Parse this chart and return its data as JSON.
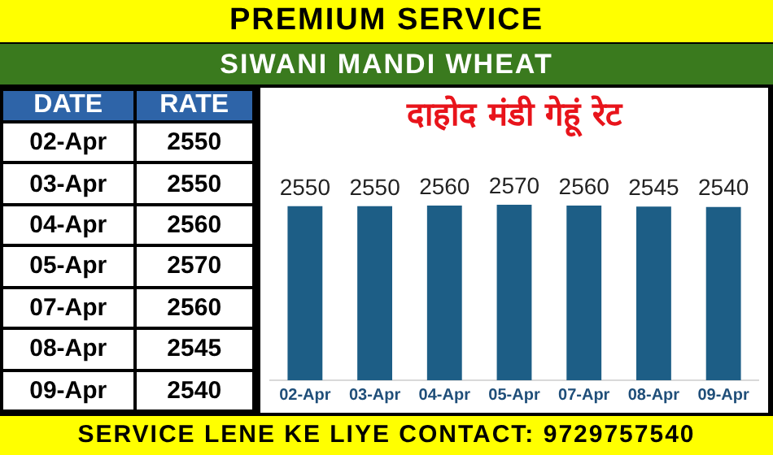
{
  "chart_data": [
    {
      "type": "other",
      "annotations": [
        "DATE",
        "RATE"
      ],
      "categories": [
        "02-Apr",
        "03-Apr",
        "04-Apr",
        "05-Apr",
        "07-Apr",
        "08-Apr",
        "09-Apr"
      ],
      "values": [
        2550,
        2550,
        2560,
        2570,
        2560,
        2545,
        2540
      ],
      "data_labels": true
    },
    {
      "type": "bar",
      "title": "दाहोद मंडी गेहूं रेट",
      "annotations": [
        "PREMIUM SERVICE",
        "SIWANI MANDI WHEAT",
        "SERVICE LENE KE LIYE CONTACT: 9729757540"
      ],
      "categories": [
        "02-Apr",
        "03-Apr",
        "04-Apr",
        "05-Apr",
        "07-Apr",
        "08-Apr",
        "09-Apr"
      ],
      "values": [
        2550,
        2550,
        2560,
        2570,
        2560,
        2545,
        2540
      ],
      "color": "#1d5e86",
      "tick_labels": "x",
      "data_labels": true
    }
  ]
}
